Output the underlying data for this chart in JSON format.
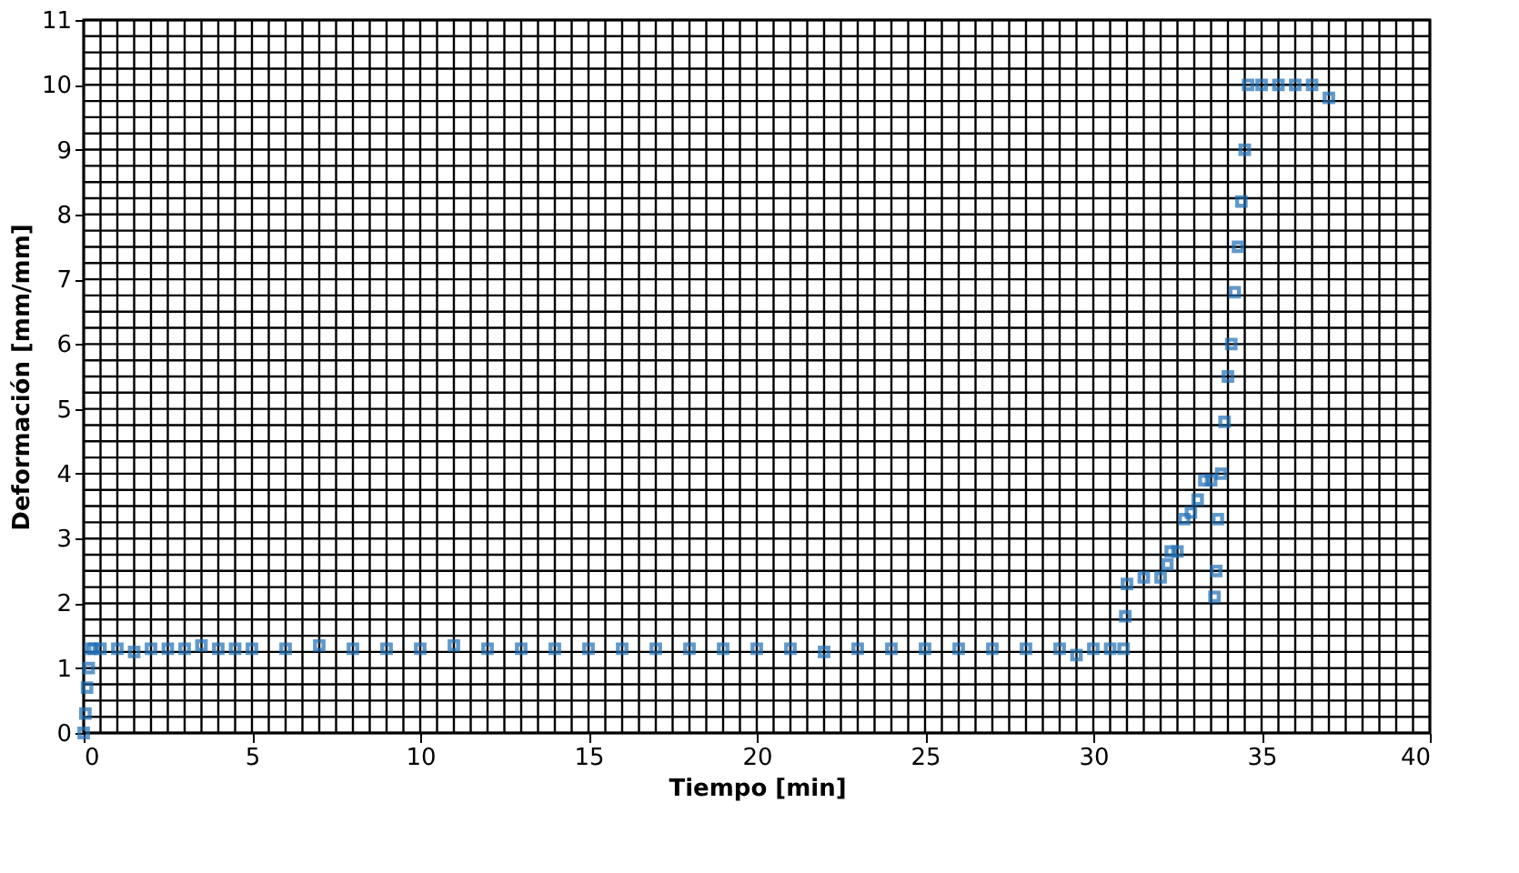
{
  "chart_data": {
    "type": "scatter",
    "xlabel": "Tiempo [min]",
    "ylabel": "Deformación [mm/mm]",
    "xlim": [
      0,
      40
    ],
    "ylim": [
      0,
      11
    ],
    "xticks": [
      0,
      5,
      10,
      15,
      20,
      25,
      30,
      35,
      40
    ],
    "yticks": [
      0,
      1,
      2,
      3,
      4,
      5,
      6,
      7,
      8,
      9,
      10,
      11
    ],
    "grid": true,
    "marker": "square",
    "legend": false,
    "series": [
      {
        "color": "#1f6fb4",
        "x": [
          0,
          0.05,
          0.1,
          0.15,
          0.2,
          0.3,
          0.5,
          1,
          1.5,
          2,
          2.5,
          3,
          3.5,
          4,
          4.5,
          5,
          6,
          7,
          8,
          9,
          10,
          11,
          12,
          13,
          14,
          15,
          16,
          17,
          18,
          19,
          20,
          21,
          22,
          23,
          24,
          25,
          26,
          27,
          28,
          29,
          29.5,
          30,
          30.5,
          30.9,
          30.95,
          31,
          31.5,
          32,
          32.2,
          32.3,
          32.5,
          32.7,
          32.9,
          33.1,
          33.3,
          33.5,
          33.6,
          33.65,
          33.7,
          33.8,
          33.9,
          34,
          34.1,
          34.2,
          34.3,
          34.4,
          34.5,
          34.6,
          35,
          35.5,
          36,
          36.5,
          37
        ],
        "values": [
          0,
          0.3,
          0.7,
          1.0,
          1.3,
          1.3,
          1.3,
          1.3,
          1.25,
          1.3,
          1.3,
          1.3,
          1.35,
          1.3,
          1.3,
          1.3,
          1.3,
          1.35,
          1.3,
          1.3,
          1.3,
          1.35,
          1.3,
          1.3,
          1.3,
          1.3,
          1.3,
          1.3,
          1.3,
          1.3,
          1.3,
          1.3,
          1.25,
          1.3,
          1.3,
          1.3,
          1.3,
          1.3,
          1.3,
          1.3,
          1.2,
          1.3,
          1.3,
          1.3,
          1.8,
          2.3,
          2.4,
          2.4,
          2.6,
          2.8,
          2.8,
          3.3,
          3.4,
          3.6,
          3.9,
          3.9,
          2.1,
          2.5,
          3.3,
          4.0,
          4.8,
          5.5,
          6.0,
          6.8,
          7.5,
          8.2,
          9.0,
          10.0,
          10.0,
          10.0,
          10.0,
          10.0,
          9.8
        ]
      }
    ]
  }
}
